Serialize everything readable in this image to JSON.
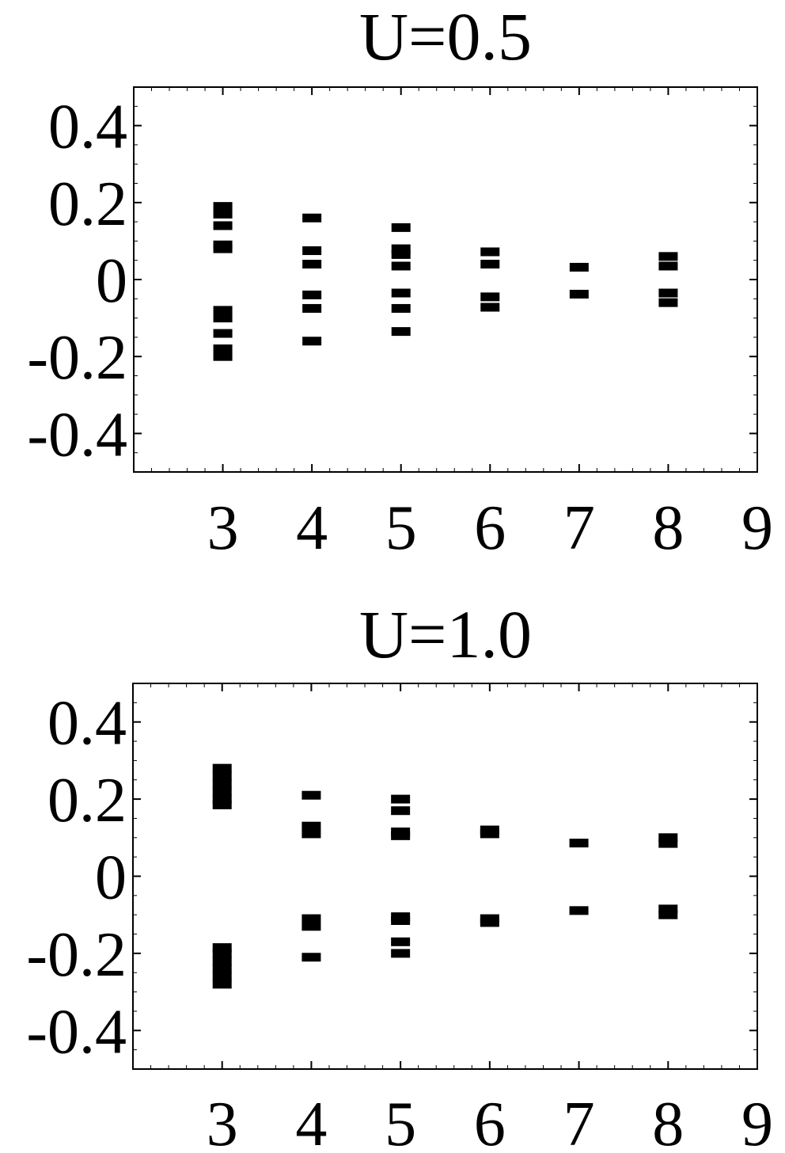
{
  "chart_data": [
    {
      "type": "scatter",
      "marker": "horizontal-bar",
      "title": "U=0.5",
      "xlabel": "",
      "ylabel": "",
      "xlim": [
        2,
        9
      ],
      "ylim": [
        -0.5,
        0.5
      ],
      "xticks": [
        3,
        4,
        5,
        6,
        7,
        8,
        9
      ],
      "xtick_labels": [
        "3",
        "4",
        "5",
        "6",
        "7",
        "8",
        "9"
      ],
      "yticks": [
        0.4,
        0.2,
        0,
        -0.2,
        -0.4
      ],
      "ytick_labels": [
        "0.4",
        "0.2",
        "0",
        "-0.2",
        "-0.4"
      ],
      "grid": false,
      "color": "#000000",
      "points": [
        {
          "x": 3,
          "y": 0.19
        },
        {
          "x": 3,
          "y": 0.17
        },
        {
          "x": 3,
          "y": 0.14
        },
        {
          "x": 3,
          "y": 0.09
        },
        {
          "x": 3,
          "y": 0.08
        },
        {
          "x": 3,
          "y": -0.08
        },
        {
          "x": 3,
          "y": -0.1
        },
        {
          "x": 3,
          "y": -0.14
        },
        {
          "x": 3,
          "y": -0.18
        },
        {
          "x": 3,
          "y": -0.2
        },
        {
          "x": 4,
          "y": 0.16
        },
        {
          "x": 4,
          "y": 0.075
        },
        {
          "x": 4,
          "y": 0.04
        },
        {
          "x": 4,
          "y": -0.04
        },
        {
          "x": 4,
          "y": -0.075
        },
        {
          "x": 4,
          "y": -0.16
        },
        {
          "x": 5,
          "y": 0.135
        },
        {
          "x": 5,
          "y": 0.08
        },
        {
          "x": 5,
          "y": 0.065
        },
        {
          "x": 5,
          "y": 0.035
        },
        {
          "x": 5,
          "y": -0.035
        },
        {
          "x": 5,
          "y": -0.075
        },
        {
          "x": 5,
          "y": -0.135
        },
        {
          "x": 6,
          "y": 0.072
        },
        {
          "x": 6,
          "y": 0.04
        },
        {
          "x": 6,
          "y": -0.045
        },
        {
          "x": 6,
          "y": -0.072
        },
        {
          "x": 7,
          "y": 0.032
        },
        {
          "x": 7,
          "y": -0.038
        },
        {
          "x": 8,
          "y": 0.06
        },
        {
          "x": 8,
          "y": 0.035
        },
        {
          "x": 8,
          "y": -0.035
        },
        {
          "x": 8,
          "y": -0.06
        }
      ]
    },
    {
      "type": "scatter",
      "marker": "horizontal-bar",
      "title": "U=1.0",
      "xlabel": "",
      "ylabel": "",
      "xlim": [
        2,
        9
      ],
      "ylim": [
        -0.5,
        0.5
      ],
      "xticks": [
        3,
        4,
        5,
        6,
        7,
        8,
        9
      ],
      "xtick_labels": [
        "3",
        "4",
        "5",
        "6",
        "7",
        "8",
        "9"
      ],
      "yticks": [
        0.4,
        0.2,
        0,
        -0.2,
        -0.4
      ],
      "ytick_labels": [
        "0.4",
        "0.2",
        "0",
        "-0.2",
        "-0.4"
      ],
      "grid": false,
      "color": "#000000",
      "points": [
        {
          "x": 3,
          "y": 0.28
        },
        {
          "x": 3,
          "y": 0.26
        },
        {
          "x": 3,
          "y": 0.24
        },
        {
          "x": 3,
          "y": 0.22
        },
        {
          "x": 3,
          "y": 0.2
        },
        {
          "x": 3,
          "y": 0.185
        },
        {
          "x": 3,
          "y": -0.185
        },
        {
          "x": 3,
          "y": -0.2
        },
        {
          "x": 3,
          "y": -0.22
        },
        {
          "x": 3,
          "y": -0.24
        },
        {
          "x": 3,
          "y": -0.26
        },
        {
          "x": 3,
          "y": -0.28
        },
        {
          "x": 4,
          "y": 0.21
        },
        {
          "x": 4,
          "y": 0.13
        },
        {
          "x": 4,
          "y": 0.11
        },
        {
          "x": 4,
          "y": -0.11
        },
        {
          "x": 4,
          "y": -0.13
        },
        {
          "x": 4,
          "y": -0.21
        },
        {
          "x": 5,
          "y": 0.2
        },
        {
          "x": 5,
          "y": 0.17
        },
        {
          "x": 5,
          "y": 0.115
        },
        {
          "x": 5,
          "y": 0.105
        },
        {
          "x": 5,
          "y": -0.105
        },
        {
          "x": 5,
          "y": -0.115
        },
        {
          "x": 5,
          "y": -0.17
        },
        {
          "x": 5,
          "y": -0.2
        },
        {
          "x": 6,
          "y": 0.12
        },
        {
          "x": 6,
          "y": 0.11
        },
        {
          "x": 6,
          "y": -0.11
        },
        {
          "x": 6,
          "y": -0.12
        },
        {
          "x": 7,
          "y": 0.086
        },
        {
          "x": 7,
          "y": -0.089
        },
        {
          "x": 8,
          "y": 0.1
        },
        {
          "x": 8,
          "y": 0.085
        },
        {
          "x": 8,
          "y": -0.085
        },
        {
          "x": 8,
          "y": -0.1
        }
      ]
    }
  ]
}
